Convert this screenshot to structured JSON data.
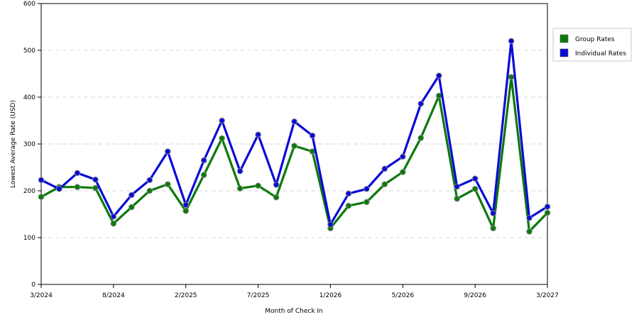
{
  "chart_data": {
    "type": "line",
    "title": "",
    "xlabel": "Month of Check In",
    "ylabel": "Lowest Average Rate (USD)",
    "ylim": [
      0,
      600
    ],
    "yticks": [
      0,
      100,
      200,
      300,
      400,
      500,
      600
    ],
    "grid": "horizontal dashed",
    "legend_position": "right",
    "xticks": [
      {
        "index": 0,
        "label": "3/2024"
      },
      {
        "index": 4,
        "label": "8/2024"
      },
      {
        "index": 8,
        "label": "2/2025"
      },
      {
        "index": 12,
        "label": "7/2025"
      },
      {
        "index": 16,
        "label": "1/2026"
      },
      {
        "index": 20,
        "label": "5/2026"
      },
      {
        "index": 24,
        "label": "9/2026"
      },
      {
        "index": 28,
        "label": "3/2027"
      }
    ],
    "series": [
      {
        "name": "Group Rates",
        "color": "#0a7a0a",
        "values": [
          187,
          208,
          208,
          206,
          130,
          165,
          200,
          214,
          157,
          234,
          312,
          205,
          211,
          186,
          296,
          284,
          120,
          168,
          176,
          214,
          240,
          313,
          403,
          183,
          204,
          120,
          443,
          113,
          153
        ]
      },
      {
        "name": "Individual Rates",
        "color": "#0a0ad8",
        "values": [
          223,
          204,
          238,
          224,
          145,
          191,
          223,
          284,
          170,
          265,
          350,
          242,
          320,
          213,
          348,
          318,
          128,
          194,
          204,
          247,
          273,
          386,
          446,
          209,
          226,
          152,
          520,
          142,
          166
        ]
      }
    ]
  }
}
